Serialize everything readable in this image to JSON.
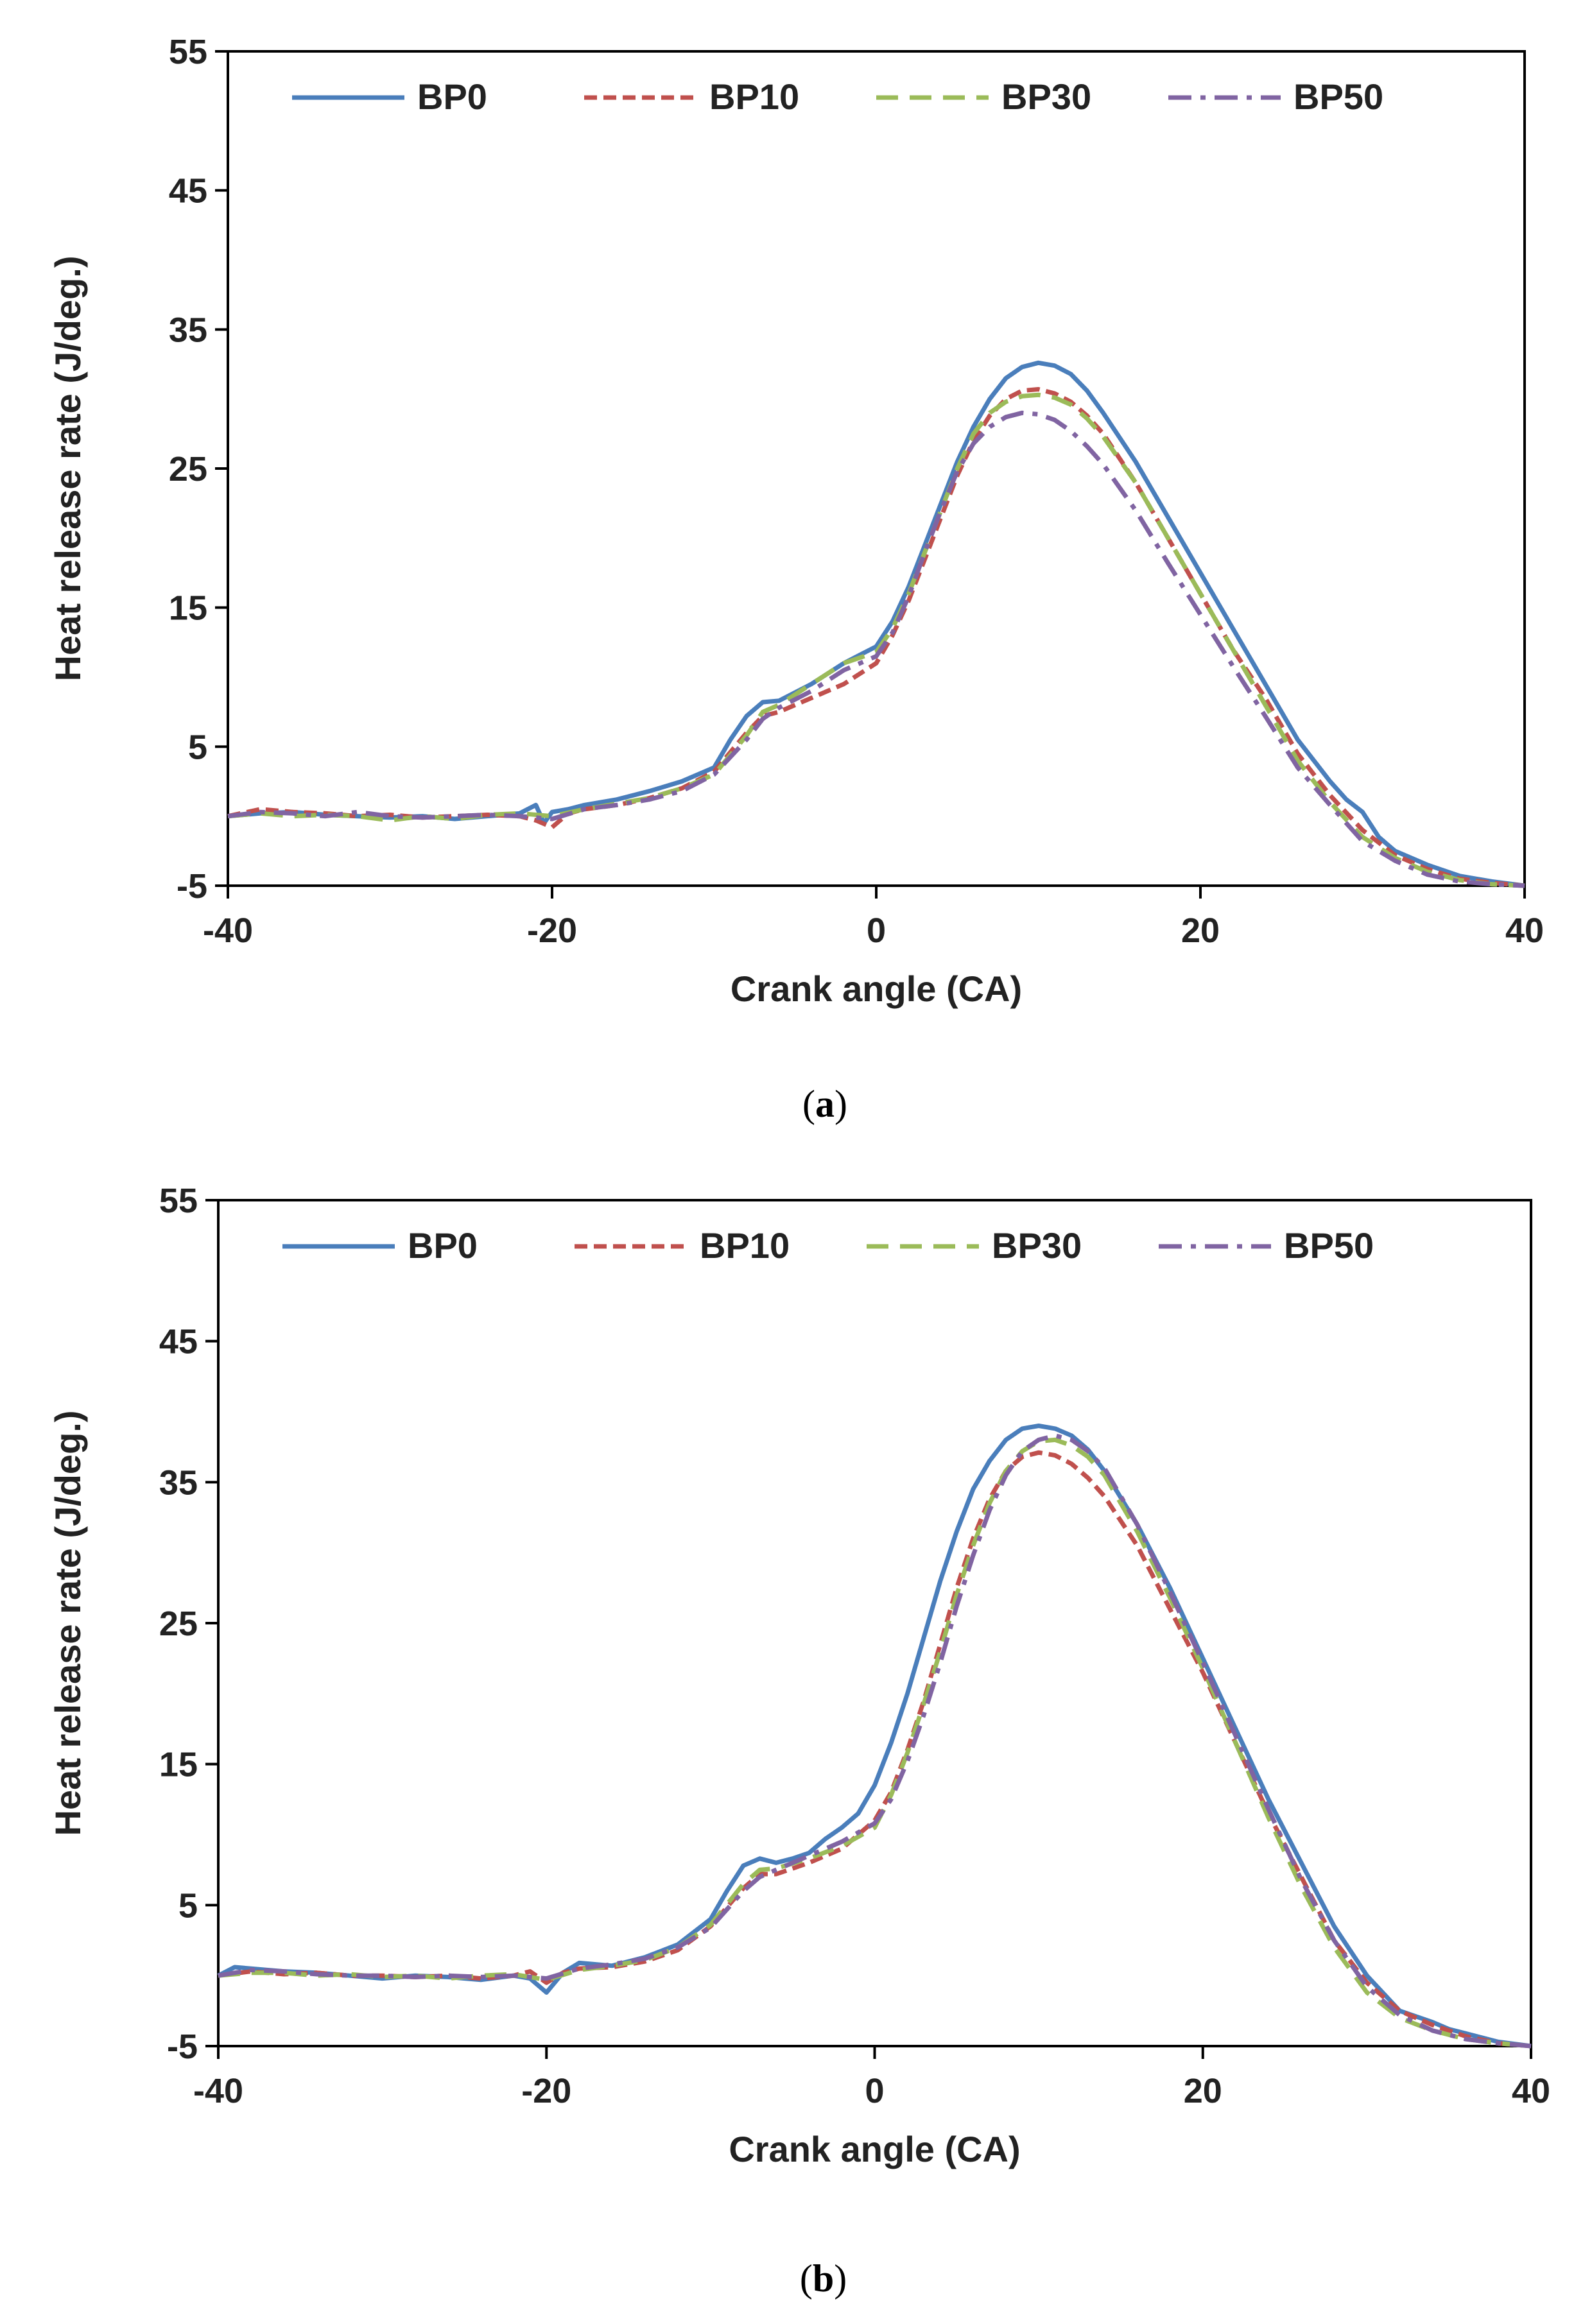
{
  "chart_data": [
    {
      "type": "line",
      "panel_label": "a",
      "title": "",
      "xlabel": "Crank angle (CA)",
      "ylabel": "Heat release rate (J/deg.)",
      "xlim": [
        -40,
        40
      ],
      "ylim": [
        -5,
        55
      ],
      "xticks": [
        "-40",
        "-20",
        "0",
        "20",
        "40"
      ],
      "yticks": [
        "-5",
        "5",
        "15",
        "25",
        "35",
        "45",
        "55"
      ],
      "legend_position": "top",
      "series": [
        {
          "name": "BP0",
          "color": "#4a7ebb",
          "style": "solid",
          "x": [
            -40,
            -38,
            -36,
            -34,
            -32,
            -30,
            -28,
            -26,
            -24,
            -22,
            -21,
            -20.5,
            -20,
            -19,
            -18,
            -16,
            -14,
            -12,
            -10,
            -9,
            -8,
            -7,
            -6,
            -4,
            -2,
            0,
            1,
            2,
            3,
            4,
            5,
            6,
            7,
            8,
            9,
            10,
            11,
            12,
            13,
            14,
            16,
            18,
            20,
            22,
            24,
            26,
            28,
            29,
            30,
            31,
            32,
            34,
            36,
            38,
            40
          ],
          "y": [
            0,
            0.2,
            0.3,
            0.1,
            0,
            -0.1,
            0,
            -0.2,
            0,
            0.2,
            0.8,
            -0.5,
            0.3,
            0.5,
            0.8,
            1.2,
            1.8,
            2.5,
            3.5,
            5.5,
            7.2,
            8.2,
            8.3,
            9.5,
            11,
            12.2,
            14,
            16.5,
            19.5,
            22.5,
            25.5,
            28,
            30,
            31.5,
            32.3,
            32.6,
            32.4,
            31.8,
            30.6,
            29,
            25.5,
            21.5,
            17.5,
            13.5,
            9.5,
            5.5,
            2.5,
            1.2,
            0.3,
            -1.5,
            -2.5,
            -3.5,
            -4.3,
            -4.7,
            -5
          ]
        },
        {
          "name": "BP10",
          "color": "#c0504d",
          "style": "dashed",
          "x": [
            -40,
            -38,
            -36,
            -34,
            -32,
            -30,
            -28,
            -26,
            -24,
            -22,
            -21,
            -20,
            -19,
            -18,
            -16,
            -14,
            -12,
            -10,
            -8,
            -7,
            -6,
            -4,
            -2,
            0,
            1,
            2,
            3,
            4,
            5,
            6,
            7,
            8,
            9,
            10,
            11,
            12,
            13,
            14,
            16,
            18,
            20,
            22,
            24,
            26,
            28,
            30,
            32,
            34,
            36,
            38,
            40
          ],
          "y": [
            0,
            0.5,
            0.3,
            0.2,
            0,
            0.1,
            -0.1,
            0,
            0.1,
            0,
            -0.3,
            -0.8,
            0.2,
            0.5,
            0.8,
            1.3,
            2,
            3.2,
            6,
            7.2,
            7.5,
            8.5,
            9.5,
            11,
            13,
            15.5,
            18.5,
            21.5,
            24.5,
            27,
            28.8,
            30,
            30.6,
            30.7,
            30.4,
            29.8,
            28.8,
            27.5,
            24,
            20,
            16,
            12,
            8.5,
            4.5,
            1.5,
            -1,
            -2.8,
            -3.8,
            -4.5,
            -4.8,
            -5
          ]
        },
        {
          "name": "BP30",
          "color": "#9bbb59",
          "style": "longdash",
          "x": [
            -40,
            -38,
            -36,
            -34,
            -32,
            -30,
            -28,
            -26,
            -24,
            -22,
            -20,
            -18,
            -16,
            -14,
            -12,
            -10,
            -8,
            -7,
            -6,
            -4,
            -2,
            0,
            1,
            2,
            3,
            4,
            5,
            6,
            7,
            8,
            9,
            10,
            11,
            12,
            13,
            14,
            16,
            18,
            20,
            22,
            24,
            26,
            28,
            30,
            32,
            34,
            36,
            38,
            40
          ],
          "y": [
            0,
            0.2,
            0,
            0.1,
            0,
            -0.3,
            0,
            -0.2,
            0.1,
            0.2,
            0,
            0.5,
            0.9,
            1.3,
            2,
            3,
            5.8,
            7.5,
            8,
            9.5,
            11,
            11.8,
            13.5,
            16,
            19,
            22,
            25,
            27.5,
            29,
            29.8,
            30.2,
            30.3,
            30.1,
            29.6,
            28.6,
            27.3,
            24,
            20,
            16,
            12,
            8,
            4,
            1,
            -1.5,
            -3,
            -4,
            -4.6,
            -4.9,
            -5
          ]
        },
        {
          "name": "BP50",
          "color": "#8064a2",
          "style": "dashdot",
          "x": [
            -40,
            -38,
            -36,
            -34,
            -32,
            -30,
            -28,
            -26,
            -24,
            -22,
            -20,
            -18,
            -16,
            -14,
            -12,
            -10,
            -8,
            -7,
            -6,
            -4,
            -2,
            0,
            1,
            2,
            3,
            4,
            5,
            6,
            7,
            8,
            9,
            10,
            11,
            12,
            13,
            14,
            16,
            18,
            20,
            22,
            24,
            26,
            28,
            30,
            32,
            34,
            36,
            38,
            40
          ],
          "y": [
            0,
            0.3,
            0.2,
            0,
            0.3,
            0,
            -0.1,
            0,
            0.1,
            0,
            -0.2,
            0.5,
            0.8,
            1.2,
            1.8,
            3,
            5.5,
            7,
            7.8,
            9,
            10.5,
            11.5,
            13.2,
            15.8,
            19,
            22,
            24.8,
            26.8,
            28,
            28.7,
            29,
            28.9,
            28.5,
            27.7,
            26.6,
            25.3,
            22,
            18.2,
            14.5,
            10.8,
            7.2,
            3.5,
            0.8,
            -1.8,
            -3.2,
            -4.2,
            -4.7,
            -4.9,
            -5
          ]
        }
      ]
    },
    {
      "type": "line",
      "panel_label": "b",
      "title": "",
      "xlabel": "Crank angle (CA)",
      "ylabel": "Heat release rate (J/deg.)",
      "xlim": [
        -40,
        40
      ],
      "ylim": [
        -5,
        55
      ],
      "xticks": [
        "-40",
        "-20",
        "0",
        "20",
        "40"
      ],
      "yticks": [
        "-5",
        "5",
        "15",
        "25",
        "35",
        "45",
        "55"
      ],
      "legend_position": "top",
      "series": [
        {
          "name": "BP0",
          "color": "#4a7ebb",
          "style": "solid",
          "x": [
            -40,
            -39,
            -38,
            -36,
            -34,
            -32,
            -30,
            -28,
            -26,
            -24,
            -22,
            -21,
            -20,
            -19,
            -18,
            -16,
            -14,
            -12,
            -10,
            -9,
            -8,
            -7,
            -6,
            -5,
            -4,
            -3,
            -2,
            -1,
            0,
            1,
            2,
            3,
            4,
            5,
            6,
            7,
            8,
            9,
            10,
            11,
            12,
            13,
            14,
            16,
            18,
            20,
            22,
            24,
            26,
            28,
            30,
            32,
            34,
            35,
            36,
            38,
            40
          ],
          "y": [
            0,
            0.6,
            0.5,
            0.3,
            0.2,
            0,
            -0.2,
            0,
            -0.1,
            -0.3,
            0,
            -0.2,
            -1.2,
            0.2,
            0.9,
            0.7,
            1.3,
            2.2,
            4,
            6,
            7.8,
            8.3,
            8,
            8.3,
            8.7,
            9.7,
            10.5,
            11.5,
            13.5,
            16.5,
            20,
            24,
            28,
            31.5,
            34.5,
            36.5,
            38,
            38.8,
            39,
            38.8,
            38.3,
            37.3,
            35.8,
            32,
            27.5,
            22.5,
            17.5,
            12.5,
            8,
            3.5,
            0,
            -2.5,
            -3.3,
            -3.8,
            -4.1,
            -4.7,
            -5
          ]
        },
        {
          "name": "BP10",
          "color": "#c0504d",
          "style": "dashed",
          "x": [
            -40,
            -38,
            -36,
            -34,
            -32,
            -30,
            -28,
            -26,
            -24,
            -22,
            -21,
            -20,
            -19,
            -18,
            -16,
            -14,
            -12,
            -10,
            -8,
            -7,
            -6,
            -4,
            -2,
            0,
            1,
            2,
            3,
            4,
            5,
            6,
            7,
            8,
            9,
            10,
            11,
            12,
            13,
            14,
            16,
            18,
            20,
            22,
            24,
            26,
            28,
            30,
            32,
            34,
            36,
            38,
            40
          ],
          "y": [
            0,
            0.3,
            0.1,
            0.2,
            0,
            0,
            -0.1,
            0,
            -0.2,
            0,
            0.3,
            -0.5,
            0.2,
            0.5,
            0.6,
            1,
            1.8,
            3.5,
            6.2,
            7.2,
            7.2,
            8,
            9,
            11,
            13,
            16,
            19.5,
            23.5,
            27.5,
            31,
            33.8,
            35.8,
            36.8,
            37.1,
            36.9,
            36.3,
            35.3,
            34,
            30.5,
            26,
            21.5,
            16.5,
            11.5,
            7,
            2.5,
            -0.5,
            -2.5,
            -3.5,
            -4.3,
            -4.8,
            -5
          ]
        },
        {
          "name": "BP30",
          "color": "#9bbb59",
          "style": "longdash",
          "x": [
            -40,
            -38,
            -36,
            -34,
            -32,
            -30,
            -28,
            -26,
            -24,
            -22,
            -20,
            -18,
            -16,
            -14,
            -12,
            -10,
            -8,
            -7,
            -6,
            -4,
            -2,
            0,
            1,
            2,
            3,
            4,
            5,
            6,
            7,
            8,
            9,
            10,
            11,
            12,
            13,
            14,
            16,
            18,
            20,
            22,
            24,
            26,
            28,
            30,
            32,
            34,
            36,
            38,
            40
          ],
          "y": [
            0,
            0.2,
            0.2,
            0,
            0.1,
            -0.1,
            0,
            -0.2,
            0,
            0.1,
            -0.3,
            0.4,
            0.7,
            1.1,
            2,
            3.6,
            6.5,
            7.5,
            7.6,
            8.3,
            9.2,
            10.5,
            12.8,
            15.8,
            19.3,
            23,
            27,
            30.5,
            33.5,
            35.8,
            37.2,
            37.9,
            38,
            37.6,
            36.8,
            35.5,
            31.5,
            26.8,
            21.8,
            16.5,
            11.2,
            6.3,
            2,
            -1.2,
            -3,
            -3.9,
            -4.5,
            -4.8,
            -5
          ]
        },
        {
          "name": "BP50",
          "color": "#8064a2",
          "style": "dashdot",
          "x": [
            -40,
            -38,
            -36,
            -34,
            -32,
            -30,
            -28,
            -26,
            -24,
            -22,
            -20,
            -18,
            -16,
            -14,
            -12,
            -10,
            -8,
            -7,
            -6,
            -4,
            -2,
            0,
            1,
            2,
            3,
            4,
            5,
            6,
            7,
            8,
            9,
            10,
            11,
            12,
            13,
            14,
            16,
            18,
            20,
            22,
            24,
            26,
            28,
            30,
            32,
            34,
            36,
            38,
            40
          ],
          "y": [
            0,
            0.4,
            0.3,
            0.1,
            0,
            0,
            -0.1,
            0,
            -0.1,
            0,
            -0.2,
            0.5,
            0.8,
            1.2,
            2,
            3.4,
            6,
            7,
            7.5,
            8.5,
            9.5,
            10.8,
            12.5,
            15.2,
            18.5,
            22.2,
            26.2,
            29.8,
            33,
            35.5,
            37.2,
            38,
            38.3,
            38,
            37.2,
            36,
            32,
            27.2,
            22.2,
            17,
            11.8,
            6.8,
            2.5,
            -0.8,
            -2.8,
            -3.9,
            -4.5,
            -4.8,
            -5
          ]
        }
      ]
    }
  ]
}
